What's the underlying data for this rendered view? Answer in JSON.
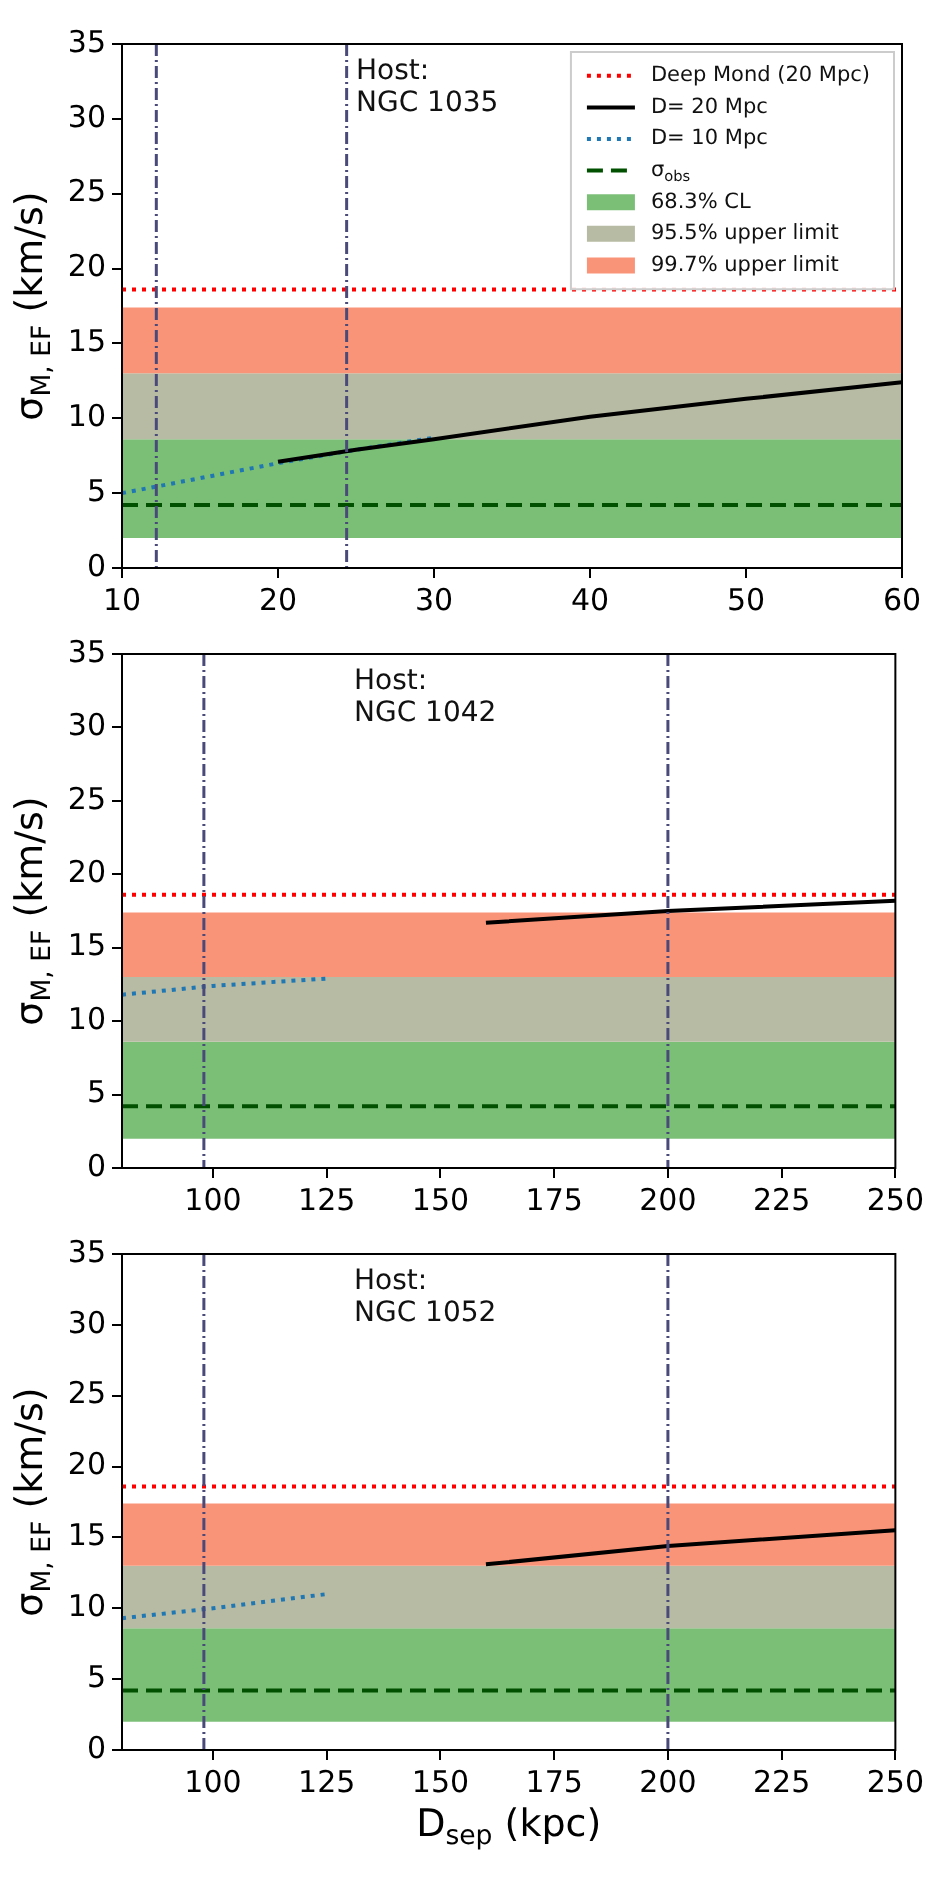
{
  "chart_data": [
    {
      "type": "line",
      "ylabel": "σ$_{M, EF}$ (km/s)",
      "xlim": [
        10,
        60
      ],
      "xticks": [
        10,
        20,
        30,
        40,
        50,
        60
      ],
      "ylim": [
        0,
        35
      ],
      "yticks": [
        0,
        5,
        10,
        15,
        20,
        25,
        30,
        35
      ],
      "grid": false,
      "legend": "top right",
      "marker": "none",
      "annotations": [
        "Host:\nNGC 1035"
      ],
      "series": [
        {
          "name": "Deep Mond (20 Mpc)",
          "color": "#ff0000",
          "line_style": "dotted",
          "x": [
            10,
            60
          ],
          "values": [
            18.6,
            18.6
          ]
        },
        {
          "name": "D= 20 Mpc",
          "color": "#000000",
          "line_style": "solid",
          "x": [
            20,
            25,
            30,
            40,
            50,
            60
          ],
          "values": [
            7.1,
            7.9,
            8.6,
            10.1,
            11.3,
            12.4
          ]
        },
        {
          "name": "D= 10 Mpc",
          "color": "#1f77b4",
          "line_style": "dotted",
          "x": [
            10,
            15,
            20,
            25,
            30
          ],
          "values": [
            5.0,
            6.0,
            7.0,
            7.9,
            8.7
          ]
        },
        {
          "name": "σ$_{obs}$",
          "color": "#005000",
          "line_style": "dashed",
          "x": [
            10,
            60
          ],
          "values": [
            4.2,
            4.2
          ]
        }
      ],
      "bands": [
        {
          "axis": "y",
          "from": 2,
          "to": 8.6,
          "label": "68.3% CL",
          "color": "#7bbf77"
        },
        {
          "axis": "y",
          "from": 8.6,
          "to": 13,
          "label": "95.5% upper limit",
          "color": "#b8bba3"
        },
        {
          "axis": "y",
          "from": 13,
          "to": 17.4,
          "label": "99.7% upper limit",
          "color": "#fa9478"
        }
      ],
      "ref_lines": [
        {
          "axis": "x",
          "value": 12.2,
          "color": "#4a4a7a",
          "line_style": "dashdot"
        },
        {
          "axis": "x",
          "value": 24.4,
          "color": "#4a4a7a",
          "line_style": "dashdot"
        }
      ]
    },
    {
      "type": "line",
      "ylabel": "σ$_{M, EF}$ (km/s)",
      "xlim": [
        80,
        250
      ],
      "xticks": [
        100,
        125,
        150,
        175,
        200,
        225,
        250
      ],
      "ylim": [
        0,
        35
      ],
      "yticks": [
        0,
        5,
        10,
        15,
        20,
        25,
        30,
        35
      ],
      "grid": false,
      "legend": false,
      "marker": "none",
      "annotations": [
        "Host:\nNGC 1042"
      ],
      "series": [
        {
          "color": "#ff0000",
          "line_style": "dotted",
          "x": [
            80,
            250
          ],
          "values": [
            18.6,
            18.6
          ]
        },
        {
          "color": "#000000",
          "line_style": "solid",
          "x": [
            160,
            200,
            250
          ],
          "values": [
            16.7,
            17.5,
            18.2
          ]
        },
        {
          "color": "#1f77b4",
          "line_style": "dotted",
          "x": [
            80,
            100,
            125
          ],
          "values": [
            11.8,
            12.4,
            12.9
          ]
        },
        {
          "color": "#005000",
          "line_style": "dashed",
          "x": [
            80,
            250
          ],
          "values": [
            4.2,
            4.2
          ]
        }
      ],
      "bands": [
        {
          "axis": "y",
          "from": 2,
          "to": 8.6,
          "color": "#7bbf77"
        },
        {
          "axis": "y",
          "from": 8.6,
          "to": 13,
          "color": "#b8bba3"
        },
        {
          "axis": "y",
          "from": 13,
          "to": 17.4,
          "color": "#fa9478"
        }
      ],
      "ref_lines": [
        {
          "axis": "x",
          "value": 98,
          "color": "#4a4a7a",
          "line_style": "dashdot"
        },
        {
          "axis": "x",
          "value": 200,
          "color": "#4a4a7a",
          "line_style": "dashdot"
        }
      ]
    },
    {
      "type": "line",
      "xlabel": "D$_{sep}$ (kpc)",
      "ylabel": "σ$_{M, EF}$ (km/s)",
      "xlim": [
        80,
        250
      ],
      "xticks": [
        100,
        125,
        150,
        175,
        200,
        225,
        250
      ],
      "ylim": [
        0,
        35
      ],
      "yticks": [
        0,
        5,
        10,
        15,
        20,
        25,
        30,
        35
      ],
      "grid": false,
      "legend": false,
      "marker": "none",
      "annotations": [
        "Host:\nNGC 1052"
      ],
      "series": [
        {
          "color": "#ff0000",
          "line_style": "dotted",
          "x": [
            80,
            250
          ],
          "values": [
            18.6,
            18.6
          ]
        },
        {
          "color": "#000000",
          "line_style": "solid",
          "x": [
            160,
            200,
            250
          ],
          "values": [
            13.1,
            14.4,
            15.5
          ]
        },
        {
          "color": "#1f77b4",
          "line_style": "dotted",
          "x": [
            80,
            100,
            125
          ],
          "values": [
            9.3,
            10.0,
            11.0
          ]
        },
        {
          "color": "#005000",
          "line_style": "dashed",
          "x": [
            80,
            250
          ],
          "values": [
            4.2,
            4.2
          ]
        }
      ],
      "bands": [
        {
          "axis": "y",
          "from": 2,
          "to": 8.6,
          "color": "#7bbf77"
        },
        {
          "axis": "y",
          "from": 8.6,
          "to": 13,
          "color": "#b8bba3"
        },
        {
          "axis": "y",
          "from": 13,
          "to": 17.4,
          "color": "#fa9478"
        }
      ],
      "ref_lines": [
        {
          "axis": "x",
          "value": 98,
          "color": "#4a4a7a",
          "line_style": "dashdot"
        },
        {
          "axis": "x",
          "value": 200,
          "color": "#4a4a7a",
          "line_style": "dashdot"
        }
      ]
    }
  ]
}
